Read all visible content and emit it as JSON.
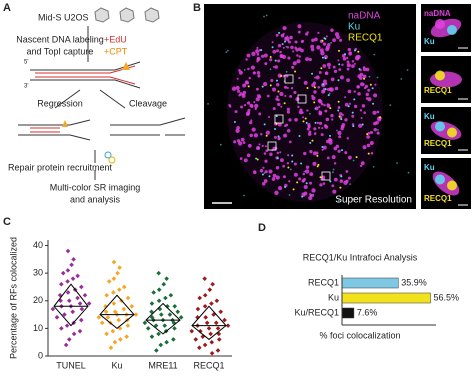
{
  "panel_labels": [
    "A",
    "B",
    "C",
    "D"
  ],
  "panel_a": {
    "cell_line": "Mid-S U2OS",
    "step1": [
      "Nascent DNA labeling",
      "and TopI capture"
    ],
    "reagents": [
      "+EdU",
      "+CPT"
    ],
    "strand_labels": [
      "5'",
      "3'"
    ],
    "outcomes": [
      "Regression",
      "Cleavage"
    ],
    "step2": "Repair protein recruitment",
    "step3": [
      "Multi-color SR imaging",
      "and analysis"
    ]
  },
  "panel_b": {
    "legend": [
      {
        "name": "naDNA",
        "color": "#e040e0"
      },
      {
        "name": "Ku",
        "color": "#5fd3f0"
      },
      {
        "name": "RECQ1",
        "color": "#f2e21c"
      }
    ],
    "caption": "Super Resolution",
    "insets": [
      [
        "naDNA",
        "Ku"
      ],
      [
        "RECQ1"
      ],
      [
        "Ku",
        "RECQ1"
      ],
      [
        "Ku",
        "RECQ1"
      ]
    ]
  },
  "chart_data": [
    {
      "type": "strip",
      "y_label": "Percentage of RFs colocalized",
      "ylim": [
        0,
        42
      ],
      "yticks": [
        0,
        10,
        20,
        30,
        40
      ],
      "categories": [
        "TUNEL",
        "Ku",
        "MRE11",
        "RECQ1"
      ],
      "groups": [
        {
          "color": "#9b2d9b",
          "q1": 11,
          "median": 18,
          "q3": 26,
          "values": [
            38,
            35,
            33,
            31,
            30,
            29,
            28,
            27,
            26,
            25,
            24,
            23,
            22,
            22,
            21,
            20,
            20,
            19,
            19,
            18,
            18,
            17,
            17,
            16,
            15,
            14,
            13,
            12,
            11,
            10,
            9,
            8,
            6,
            4
          ]
        },
        {
          "color": "#f5a623",
          "q1": 10,
          "median": 15,
          "q3": 22,
          "values": [
            34,
            32,
            30,
            28,
            27,
            25,
            24,
            23,
            22,
            21,
            20,
            19,
            18,
            18,
            17,
            16,
            16,
            15,
            15,
            15,
            14,
            14,
            13,
            13,
            12,
            12,
            11,
            10,
            9,
            8,
            7,
            6,
            5,
            3
          ]
        },
        {
          "color": "#1a6e3a",
          "q1": 8,
          "median": 13,
          "q3": 19,
          "values": [
            30,
            28,
            26,
            24,
            23,
            22,
            21,
            20,
            19,
            18,
            18,
            17,
            16,
            16,
            15,
            15,
            14,
            14,
            13,
            13,
            13,
            12,
            12,
            11,
            11,
            10,
            10,
            9,
            8,
            7,
            6,
            5,
            4,
            2
          ]
        },
        {
          "color": "#9b1c1c",
          "q1": 6,
          "median": 11,
          "q3": 18,
          "values": [
            28,
            26,
            24,
            22,
            21,
            20,
            19,
            18,
            17,
            16,
            15,
            14,
            14,
            13,
            12,
            12,
            11,
            11,
            10,
            10,
            9,
            9,
            8,
            8,
            7,
            6,
            6,
            5,
            4,
            3,
            2,
            1
          ]
        }
      ]
    },
    {
      "type": "hbar",
      "title": "RECQ1/Ku Intrafoci Analysis",
      "x_label": "% foci colocalization",
      "categories": [
        "RECQ1",
        "Ku",
        "Ku/RECQ1"
      ],
      "values": [
        35.9,
        56.5,
        7.6
      ],
      "value_labels": [
        "35.9%",
        "56.5%",
        "7.6%"
      ],
      "colors": [
        "#7ec8e3",
        "#f2e21c",
        "#111111"
      ],
      "xlim": [
        0,
        60
      ]
    }
  ]
}
